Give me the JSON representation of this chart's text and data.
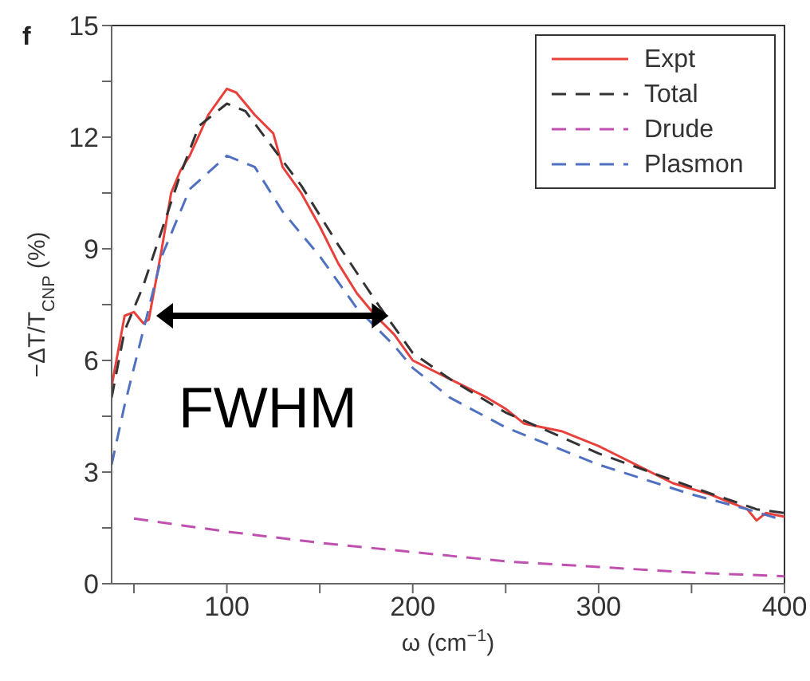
{
  "chart_data": {
    "type": "line",
    "xlabel": "ω (cm$^{−1}$)",
    "ylabel": "−ΔT/T$_{CNP}$ (%)",
    "xlim": [
      38,
      400
    ],
    "xticks": [
      {
        "value": 50,
        "label": null
      },
      100,
      {
        "value": 150,
        "label": null
      },
      200,
      {
        "value": 250,
        "label": null
      },
      300,
      {
        "value": 350,
        "label": null
      },
      400
    ],
    "ylim": [
      0,
      15
    ],
    "yticks": [
      0,
      {
        "value": 1.5,
        "label": null
      },
      3,
      {
        "value": 4.5,
        "label": null
      },
      6,
      {
        "value": 7.5,
        "label": null
      },
      9,
      {
        "value": 10.5,
        "label": null
      },
      12,
      {
        "value": 13.5,
        "label": null
      },
      15
    ],
    "legend": "top right",
    "marker": "none",
    "annotations": [
      "f",
      "FWHM"
    ],
    "series": [
      {
        "name": "Expt",
        "color": "#e8413c",
        "line_style": "solid",
        "x": [
          38,
          45,
          50,
          55,
          58,
          65,
          70,
          75,
          80,
          90,
          100,
          105,
          115,
          125,
          130,
          140,
          150,
          160,
          170,
          180,
          190,
          200,
          220,
          240,
          250,
          260,
          280,
          300,
          320,
          340,
          360,
          380,
          385,
          390,
          400
        ],
        "values": [
          5.3,
          7.2,
          7.3,
          7.0,
          7.1,
          9,
          10.5,
          11.1,
          11.5,
          12.6,
          13.3,
          13.2,
          12.6,
          12.1,
          11.2,
          10.5,
          9.6,
          8.6,
          7.8,
          7.2,
          6.7,
          6.0,
          5.5,
          5.0,
          4.7,
          4.3,
          4.1,
          3.7,
          3.2,
          2.7,
          2.4,
          2.0,
          1.7,
          1.9,
          1.8
        ]
      },
      {
        "name": "Total",
        "color": "#333333",
        "line_style": "dashed",
        "x": [
          38,
          45,
          55,
          65,
          75,
          85,
          100,
          110,
          125,
          140,
          160,
          180,
          200,
          220,
          250,
          300,
          350,
          385,
          400
        ],
        "values": [
          5.0,
          6.8,
          8,
          9.5,
          11,
          12.3,
          12.9,
          12.7,
          11.7,
          10.7,
          9.1,
          7.6,
          6.2,
          5.5,
          4.6,
          3.5,
          2.6,
          2.0,
          1.9
        ]
      },
      {
        "name": "Drude",
        "color": "#c050b0",
        "line_style": "dashed",
        "x": [
          50,
          100,
          150,
          200,
          250,
          300,
          350,
          400
        ],
        "values": [
          1.75,
          1.4,
          1.1,
          0.85,
          0.6,
          0.45,
          0.3,
          0.2
        ]
      },
      {
        "name": "Plasmon",
        "color": "#5070c0",
        "line_style": "dashed",
        "x": [
          38,
          45,
          55,
          65,
          80,
          100,
          115,
          130,
          150,
          170,
          190,
          200,
          220,
          250,
          300,
          350,
          380,
          400
        ],
        "values": [
          3.2,
          4.8,
          6.8,
          8.8,
          10.6,
          11.5,
          11.2,
          10.0,
          8.8,
          7.4,
          6.4,
          5.8,
          5.0,
          4.2,
          3.2,
          2.4,
          2.0,
          1.7
        ]
      }
    ]
  }
}
